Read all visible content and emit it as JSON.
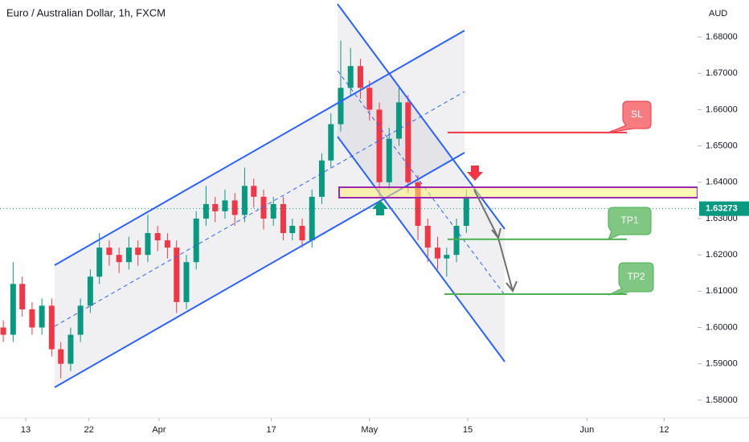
{
  "chart_data": {
    "type": "candlestick",
    "title": "Euro / Australian Dollar, 1h, FXCM",
    "y_axis_label": "AUD",
    "xlim": [
      -3.67,
      95.76
    ],
    "xticks": [
      {
        "value": 0,
        "label": "13"
      },
      {
        "value": 9,
        "label": "22"
      },
      {
        "value": 19,
        "label": "Apr"
      },
      {
        "value": 35,
        "label": "17"
      },
      {
        "value": 49,
        "label": "May"
      },
      {
        "value": 63,
        "label": "15"
      },
      {
        "value": 80,
        "label": "Jun"
      },
      {
        "value": 91,
        "label": "12"
      }
    ],
    "ylim": [
      1.5751,
      1.6902
    ],
    "yticks": [
      {
        "value": 1.58,
        "label": "1.58000"
      },
      {
        "value": 1.59,
        "label": "1.59000"
      },
      {
        "value": 1.6,
        "label": "1.60000"
      },
      {
        "value": 1.61,
        "label": "1.61000"
      },
      {
        "value": 1.62,
        "label": "1.62000"
      },
      {
        "value": 1.63,
        "label": "1.63000"
      },
      {
        "value": 1.64,
        "label": "1.64000"
      },
      {
        "value": 1.65,
        "label": "1.65000"
      },
      {
        "value": 1.66,
        "label": "1.66000"
      },
      {
        "value": 1.67,
        "label": "1.67000"
      },
      {
        "value": 1.68,
        "label": "1.68000"
      }
    ],
    "grid": false,
    "up_color": "#089981",
    "down_color": "#f23645",
    "last_price": 1.63273,
    "x": [
      -3.2,
      -1.8,
      -0.5,
      0.9,
      2.3,
      3.7,
      5.0,
      6.4,
      7.8,
      9.2,
      10.5,
      11.9,
      13.3,
      14.7,
      16.0,
      17.4,
      18.8,
      20.2,
      21.5,
      22.9,
      24.3,
      25.7,
      27.0,
      28.4,
      29.8,
      31.2,
      32.5,
      33.9,
      35.3,
      36.7,
      38.0,
      39.4,
      40.8,
      42.2,
      43.5,
      44.9,
      46.3,
      47.7,
      49.0,
      50.4,
      51.8,
      53.2,
      54.5,
      55.9,
      57.3,
      58.7,
      60.0,
      61.4,
      62.8
    ],
    "open": [
      1.6,
      1.598,
      1.612,
      1.605,
      1.6,
      1.606,
      1.594,
      1.59,
      1.598,
      1.606,
      1.614,
      1.622,
      1.62,
      1.618,
      1.622,
      1.62,
      1.626,
      1.624,
      1.622,
      1.607,
      1.618,
      1.63,
      1.634,
      1.632,
      1.635,
      1.631,
      1.639,
      1.636,
      1.63,
      1.634,
      1.626,
      1.628,
      1.624,
      1.636,
      1.646,
      1.656,
      1.666,
      1.672,
      1.666,
      1.66,
      1.64,
      1.652,
      1.662,
      1.64,
      1.628,
      1.622,
      1.619,
      1.62,
      1.628
    ],
    "high": [
      1.602,
      1.618,
      1.614,
      1.607,
      1.608,
      1.608,
      1.596,
      1.6,
      1.608,
      1.616,
      1.626,
      1.624,
      1.622,
      1.625,
      1.624,
      1.631,
      1.628,
      1.626,
      1.624,
      1.62,
      1.632,
      1.639,
      1.636,
      1.638,
      1.637,
      1.644,
      1.641,
      1.638,
      1.636,
      1.636,
      1.63,
      1.63,
      1.638,
      1.648,
      1.659,
      1.679,
      1.677,
      1.674,
      1.668,
      1.662,
      1.655,
      1.666,
      1.664,
      1.642,
      1.63,
      1.625,
      1.622,
      1.63,
      1.638
    ],
    "low": [
      1.596,
      1.596,
      1.603,
      1.598,
      1.598,
      1.592,
      1.586,
      1.588,
      1.596,
      1.604,
      1.612,
      1.617,
      1.615,
      1.616,
      1.617,
      1.618,
      1.621,
      1.619,
      1.604,
      1.605,
      1.616,
      1.628,
      1.629,
      1.63,
      1.628,
      1.629,
      1.633,
      1.627,
      1.628,
      1.624,
      1.624,
      1.622,
      1.622,
      1.634,
      1.644,
      1.654,
      1.664,
      1.663,
      1.657,
      1.636,
      1.638,
      1.65,
      1.637,
      1.624,
      1.618,
      1.616,
      1.614,
      1.618,
      1.626
    ],
    "close": [
      1.598,
      1.612,
      1.605,
      1.6,
      1.606,
      1.594,
      1.59,
      1.598,
      1.606,
      1.614,
      1.622,
      1.62,
      1.618,
      1.622,
      1.62,
      1.626,
      1.624,
      1.622,
      1.607,
      1.618,
      1.63,
      1.634,
      1.632,
      1.635,
      1.631,
      1.639,
      1.636,
      1.63,
      1.634,
      1.626,
      1.628,
      1.624,
      1.636,
      1.646,
      1.656,
      1.666,
      1.672,
      1.666,
      1.66,
      1.64,
      1.652,
      1.662,
      1.64,
      1.628,
      1.622,
      1.619,
      1.62,
      1.628,
      1.636
    ],
    "annotations": [
      {
        "text": "SL",
        "level": 1.6537,
        "color": "#f23645",
        "fill": "#f77c80"
      },
      {
        "text": "TP1",
        "level": 1.6243,
        "color": "#4caf50",
        "fill": "#81c784"
      },
      {
        "text": "TP2",
        "level": 1.6092,
        "color": "#4caf50",
        "fill": "#81c784"
      }
    ]
  }
}
